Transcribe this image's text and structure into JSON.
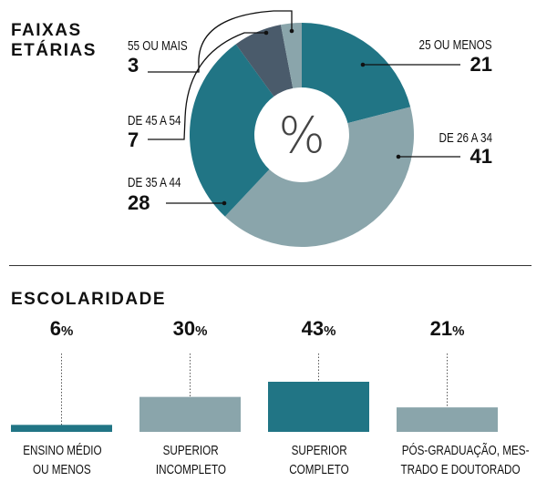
{
  "age": {
    "title_line1": "FAIXAS",
    "title_line2": "ETÁRIAS",
    "center_symbol": "%"
  },
  "education": {
    "title": "ESCOLARIDADE",
    "pct_sign": "%"
  },
  "colors": {
    "teal": "#217585",
    "light": "#8aa5ab",
    "slate": "#4a5b6b"
  },
  "chart_data": [
    {
      "type": "pie",
      "variant": "donut",
      "title": "FAIXAS ETÁRIAS",
      "unit": "%",
      "categories": [
        "25 OU MENOS",
        "DE 26 A 34",
        "DE 35 A 44",
        "DE 45 A 54",
        "55 OU MAIS"
      ],
      "values": [
        21,
        41,
        28,
        7,
        3
      ],
      "colors": [
        "#217585",
        "#8aa5ab",
        "#217585",
        "#4a5b6b",
        "#8aa5ab"
      ]
    },
    {
      "type": "bar",
      "title": "ESCOLARIDADE",
      "unit": "%",
      "categories": [
        [
          "ENSINO MÉDIO",
          "OU MENOS"
        ],
        [
          "SUPERIOR",
          "INCOMPLETO"
        ],
        [
          "SUPERIOR",
          "COMPLETO"
        ],
        [
          "PÓS-GRADUAÇÃO, MES-",
          "TRADO E DOUTORADO"
        ]
      ],
      "values": [
        6,
        30,
        43,
        21
      ],
      "colors": [
        "#217585",
        "#8aa5ab",
        "#217585",
        "#8aa5ab"
      ]
    }
  ]
}
